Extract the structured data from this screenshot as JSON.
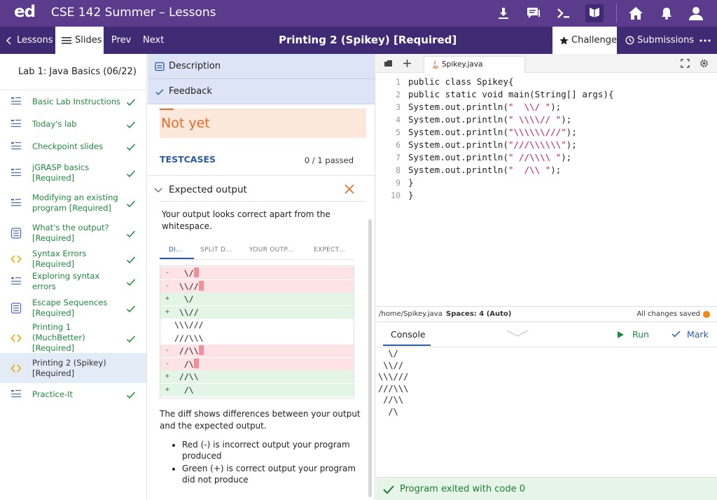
{
  "topbar": {
    "logo": "ed",
    "course": "CSE 142 Summer – Lessons"
  },
  "subbar": {
    "lessons": "Lessons",
    "slides": "Slides",
    "prev": "Prev",
    "next": "Next",
    "title": "Printing 2 (Spikey) [Required]",
    "challenge": "Challenge",
    "submissions": "Submissions"
  },
  "sidebar": {
    "lab_title": "Lab 1: Java Basics (06/22)",
    "items": [
      {
        "label": "Basic Lab Instructions",
        "icon": "document-icon"
      },
      {
        "label": "Today's lab",
        "icon": "document-icon"
      },
      {
        "label": "Checkpoint slides",
        "icon": "document-icon"
      },
      {
        "label": "jGRASP basics [Required]",
        "icon": "document-icon"
      },
      {
        "label": "Modifying an existing program [Required]",
        "icon": "document-icon"
      },
      {
        "label": "What's the output? [Required]",
        "icon": "quiz-icon"
      },
      {
        "label": "Syntax Errors [Required]",
        "icon": "code-icon"
      },
      {
        "label": "Exploring syntax errors",
        "icon": "document-icon"
      },
      {
        "label": "Escape Sequences [Required]",
        "icon": "quiz-icon"
      },
      {
        "label": "Printing 1 (MuchBetter) [Required]",
        "icon": "code-icon"
      },
      {
        "label": "Printing 2 (Spikey) [Required]",
        "icon": "code-icon"
      },
      {
        "label": "Practice-It",
        "icon": "document-icon"
      }
    ]
  },
  "middle": {
    "description_tab": "Description",
    "feedback_tab": "Feedback",
    "status": "Not yet",
    "testcases_label": "TESTCASES",
    "passed": "0 / 1 passed",
    "expected_output": "Expected output",
    "message": "Your output looks correct apart from the whitespace.",
    "diff_tabs": [
      "DI...",
      "SPLIT D...",
      "YOUR OUTP...",
      "EXPECT..."
    ],
    "diff_rows": [
      {
        "type": "del",
        "sign": "-",
        "text": "  \\/"
      },
      {
        "type": "del",
        "sign": "-",
        "text": " \\\\//"
      },
      {
        "type": "add",
        "sign": "+",
        "text": "  \\/"
      },
      {
        "type": "add",
        "sign": "+",
        "text": " \\\\//"
      },
      {
        "type": "same",
        "sign": "",
        "text": "\\\\\\///"
      },
      {
        "type": "same",
        "sign": "",
        "text": "///\\\\\\"
      },
      {
        "type": "del",
        "sign": "-",
        "text": " //\\\\"
      },
      {
        "type": "del",
        "sign": "-",
        "text": "  /\\"
      },
      {
        "type": "add",
        "sign": "+",
        "text": " //\\\\"
      },
      {
        "type": "add",
        "sign": "+",
        "text": "  /\\"
      }
    ],
    "diff_note": "The diff shows differences between your output and the expected output.",
    "bullets": [
      "Red (-) is incorrect output your program produced",
      "Green (+) is correct output your program did not produce"
    ]
  },
  "editor": {
    "filename": "Spikey.java",
    "lines": [
      {
        "n": "1",
        "pre": "public class Spikey{",
        "str": "",
        "post": ""
      },
      {
        "n": "2",
        "pre": "public static void main(String[] args){",
        "str": "",
        "post": ""
      },
      {
        "n": "3",
        "pre": "System.out.println(",
        "str": "\"  \\\\/ \"",
        "post": ");"
      },
      {
        "n": "4",
        "pre": "System.out.println(",
        "str": "\" \\\\\\\\// \"",
        "post": ");"
      },
      {
        "n": "5",
        "pre": "System.out.println(",
        "str": "\"\\\\\\\\\\\\///\"",
        "post": ");"
      },
      {
        "n": "6",
        "pre": "System.out.println(",
        "str": "\"///\\\\\\\\\\\\\"",
        "post": ");"
      },
      {
        "n": "7",
        "pre": "System.out.println(",
        "str": "\" //\\\\\\\\ \"",
        "post": ");"
      },
      {
        "n": "8",
        "pre": "System.out.println(",
        "str": "\"  /\\\\ \"",
        "post": ");"
      },
      {
        "n": "9",
        "pre": "}",
        "str": "",
        "post": ""
      },
      {
        "n": "10",
        "pre": "}",
        "str": "",
        "post": ""
      }
    ],
    "status_path": "/home/Spikey.java",
    "status_spaces": "Spaces: 4 (Auto)",
    "status_saved": "All changes saved"
  },
  "console": {
    "tab": "Console",
    "run": "Run",
    "mark": "Mark",
    "output": [
      "  \\/",
      " \\\\//",
      "\\\\\\///",
      "///\\\\\\",
      " //\\\\",
      "  /\\"
    ],
    "exit": "Program exited with code 0"
  },
  "colors": {
    "top_bar": "#5b3c8c",
    "sub_bar": "#3f2a73",
    "done_green": "#1f8a3e",
    "accent_blue": "#2a5aa8",
    "not_yet_orange": "#e26c2a"
  }
}
